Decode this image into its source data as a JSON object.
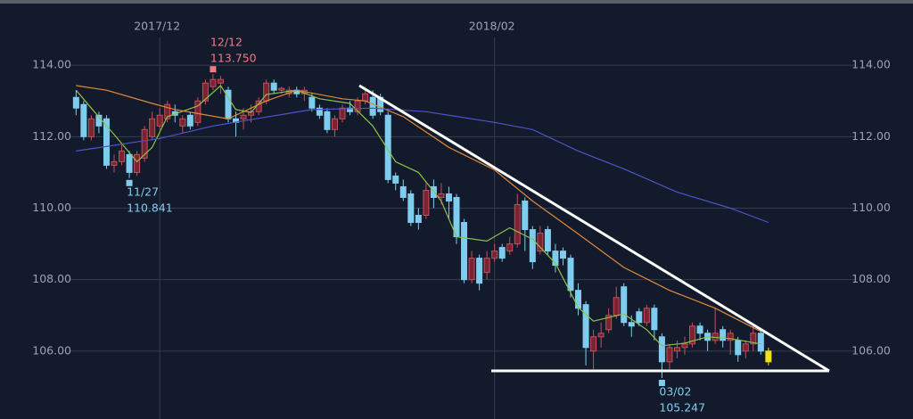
{
  "chart_data": {
    "type": "candlestick",
    "xlim": [
      -10,
      110
    ],
    "ylim": [
      104.1,
      115.7
    ],
    "xticks": [
      {
        "value": 11,
        "label": "2017/12"
      },
      {
        "value": 55,
        "label": "2018/02"
      }
    ],
    "yticks": [
      {
        "value": 106,
        "label": "106.00"
      },
      {
        "value": 108,
        "label": "108.00"
      },
      {
        "value": 110,
        "label": "110.00"
      },
      {
        "value": 112,
        "label": "112.00"
      },
      {
        "value": 114,
        "label": "114.00"
      }
    ],
    "grid": true,
    "up_color": "#c24f5d",
    "down_color": "#7fcdee",
    "last_color": "#f2e21a",
    "open": [
      113.1,
      112.9,
      112.0,
      112.6,
      112.5,
      111.2,
      111.3,
      111.5,
      111.0,
      111.4,
      112.0,
      112.3,
      112.5,
      112.7,
      112.3,
      112.6,
      112.4,
      113.0,
      113.4,
      113.5,
      113.3,
      112.5,
      112.5,
      112.6,
      112.7,
      113.0,
      113.5,
      113.3,
      113.2,
      113.3,
      113.2,
      113.1,
      112.8,
      112.7,
      112.2,
      112.5,
      112.8,
      112.7,
      113.0,
      113.1,
      113.1,
      112.6,
      110.9,
      110.6,
      110.4,
      109.8,
      109.8,
      110.6,
      110.3,
      110.4,
      110.3,
      109.6,
      108.0,
      108.6,
      108.2,
      108.6,
      108.9,
      108.8,
      109.0,
      110.2,
      109.4,
      108.8,
      109.4,
      108.8,
      108.8,
      108.6,
      107.7,
      107.3,
      106.0,
      106.4,
      106.6,
      107.0,
      107.8,
      106.8,
      107.1,
      106.8,
      107.2,
      106.4,
      105.7,
      106.0,
      106.1,
      106.2,
      106.7,
      106.5,
      106.3,
      106.6,
      106.3,
      106.3,
      106.0,
      106.2,
      106.5,
      106.0
    ],
    "high": [
      113.3,
      113.0,
      112.6,
      112.7,
      112.6,
      111.5,
      111.8,
      111.6,
      111.6,
      112.3,
      112.7,
      112.8,
      113.0,
      112.9,
      112.6,
      112.7,
      113.1,
      113.6,
      113.75,
      113.7,
      113.4,
      112.7,
      112.8,
      112.9,
      113.1,
      113.6,
      113.6,
      113.4,
      113.4,
      113.4,
      113.4,
      113.2,
      112.9,
      112.8,
      112.6,
      112.9,
      113.0,
      113.1,
      113.4,
      113.3,
      113.2,
      112.7,
      111.0,
      110.8,
      110.5,
      110.0,
      110.7,
      110.8,
      110.7,
      110.6,
      110.4,
      109.7,
      108.8,
      108.7,
      108.8,
      109.0,
      109.0,
      109.2,
      110.4,
      110.3,
      109.5,
      109.5,
      109.5,
      109.0,
      108.9,
      108.7,
      107.9,
      107.4,
      106.6,
      106.8,
      107.2,
      107.8,
      107.9,
      107.0,
      107.2,
      107.3,
      107.3,
      106.5,
      106.2,
      106.3,
      106.4,
      106.8,
      106.8,
      106.6,
      107.2,
      106.7,
      106.6,
      106.4,
      106.3,
      106.7,
      106.6,
      106.1
    ],
    "low": [
      112.6,
      111.9,
      111.9,
      112.1,
      111.1,
      111.0,
      111.2,
      110.841,
      110.9,
      111.3,
      111.9,
      112.2,
      112.4,
      112.4,
      112.1,
      112.2,
      112.3,
      112.9,
      113.3,
      113.2,
      112.4,
      112.0,
      112.2,
      112.4,
      112.6,
      112.9,
      113.2,
      113.2,
      113.1,
      113.1,
      113.0,
      112.7,
      112.5,
      112.1,
      112.0,
      112.4,
      112.6,
      112.6,
      112.9,
      112.5,
      112.6,
      110.7,
      110.5,
      110.2,
      109.5,
      109.4,
      109.7,
      110.0,
      110.1,
      109.7,
      109.0,
      107.9,
      107.9,
      107.7,
      108.0,
      108.5,
      108.5,
      108.7,
      108.9,
      108.8,
      108.3,
      108.7,
      108.7,
      108.2,
      108.4,
      107.5,
      107.0,
      105.6,
      105.5,
      106.1,
      106.5,
      106.9,
      106.7,
      106.4,
      106.7,
      106.7,
      106.3,
      105.247,
      105.5,
      105.8,
      105.9,
      106.1,
      106.3,
      106.0,
      106.2,
      106.1,
      105.9,
      105.7,
      105.8,
      106.0,
      105.9,
      105.6
    ],
    "close": [
      112.8,
      112.0,
      112.5,
      112.3,
      111.2,
      111.3,
      111.6,
      111.0,
      111.5,
      112.2,
      112.5,
      112.6,
      112.9,
      112.6,
      112.5,
      112.3,
      113.0,
      113.5,
      113.6,
      113.6,
      112.5,
      112.4,
      112.6,
      112.7,
      113.0,
      113.5,
      113.3,
      113.35,
      113.3,
      113.2,
      113.3,
      112.8,
      112.6,
      112.2,
      112.5,
      112.8,
      112.7,
      113.0,
      113.2,
      112.6,
      112.7,
      110.8,
      110.7,
      110.3,
      109.6,
      109.6,
      110.5,
      110.3,
      110.4,
      110.2,
      109.2,
      108.0,
      108.6,
      107.9,
      108.6,
      108.8,
      108.6,
      109.0,
      110.1,
      109.4,
      108.5,
      109.3,
      108.8,
      108.4,
      108.6,
      107.7,
      107.2,
      106.1,
      106.4,
      106.5,
      107.0,
      107.5,
      106.8,
      106.7,
      106.8,
      107.2,
      106.6,
      105.7,
      106.1,
      106.1,
      106.2,
      106.7,
      106.5,
      106.3,
      106.5,
      106.3,
      106.5,
      105.9,
      106.2,
      106.5,
      106.0,
      105.7
    ],
    "ma": [
      {
        "color": "#8bc34a",
        "x": [
          0,
          2,
          5,
          8,
          10,
          12,
          16,
          19,
          21,
          23,
          25,
          29,
          32,
          36,
          39,
          42,
          45,
          48,
          50,
          54,
          57,
          60,
          63,
          66,
          68,
          72,
          75,
          77,
          80,
          83,
          86,
          90
        ],
        "values": [
          113.3,
          112.8,
          112.06,
          111.3,
          111.7,
          112.56,
          112.86,
          113.43,
          112.76,
          112.68,
          113.18,
          113.3,
          113.06,
          112.93,
          112.3,
          111.3,
          111.0,
          110.2,
          109.2,
          109.08,
          109.45,
          109.13,
          108.46,
          107.22,
          106.84,
          107.04,
          106.6,
          106.15,
          106.22,
          106.4,
          106.35,
          106.2
        ]
      },
      {
        "color": "#e08a3c",
        "x": [
          0,
          4,
          10,
          13,
          20,
          25,
          29,
          35,
          38,
          43,
          49,
          55,
          60,
          66,
          72,
          78,
          84,
          90
        ],
        "values": [
          113.43,
          113.3,
          112.93,
          112.76,
          112.5,
          113.0,
          113.3,
          113.06,
          113.0,
          112.56,
          111.7,
          111.07,
          110.2,
          109.28,
          108.34,
          107.7,
          107.2,
          106.55
        ]
      },
      {
        "color": "#4b55c8",
        "x": [
          0,
          11,
          18,
          25,
          31,
          39,
          46,
          55,
          60,
          66,
          72,
          79,
          86,
          91
        ],
        "values": [
          111.6,
          111.95,
          112.3,
          112.55,
          112.76,
          112.8,
          112.7,
          112.4,
          112.2,
          111.6,
          111.1,
          110.45,
          110.0,
          109.6
        ]
      }
    ],
    "annotations": [
      {
        "date": "12/12",
        "price": {
          "value": 113.75,
          "label": "113.750"
        },
        "color": "#f07a84",
        "position": "above"
      },
      {
        "date": "11/27",
        "price": {
          "value": 110.841,
          "label": "110.841"
        },
        "color": "#7fcdee",
        "position": "below"
      },
      {
        "date": "03/02",
        "price": {
          "value": 105.247,
          "label": "105.247"
        },
        "color": "#7fcdee",
        "position": "below"
      }
    ]
  }
}
